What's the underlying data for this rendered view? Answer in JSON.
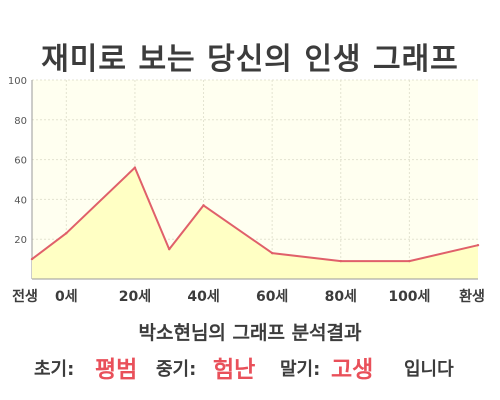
{
  "title": "재미로 보는 당신의 인생 그래프",
  "chart_data": {
    "type": "area",
    "x": [
      -10,
      0,
      20,
      30,
      40,
      60,
      80,
      100,
      120
    ],
    "values": [
      10,
      23,
      56,
      15,
      37,
      13,
      9,
      9,
      17
    ],
    "xlim": [
      -10,
      120
    ],
    "ylim": [
      0,
      100
    ],
    "yticks": [
      20,
      40,
      60,
      80,
      100
    ],
    "xticks": [
      {
        "value": -10,
        "label": "전생"
      },
      {
        "value": 0,
        "label": "0세"
      },
      {
        "value": 20,
        "label": "20세"
      },
      {
        "value": 40,
        "label": "40세"
      },
      {
        "value": 60,
        "label": "60세"
      },
      {
        "value": 80,
        "label": "80세"
      },
      {
        "value": 100,
        "label": "100세"
      },
      {
        "value": 120,
        "label": "환생"
      }
    ],
    "grid": true,
    "line_color": "#e0606a",
    "fill_color": "#ffffc4",
    "plot_bg": "#fffff0"
  },
  "result": {
    "title": "박소현님의 그래프 분석결과",
    "early_label": "초기:",
    "early_value": "평범",
    "middle_label": "중기:",
    "middle_value": "험난",
    "late_label": "말기:",
    "late_value": "고생",
    "suffix": "입니다"
  }
}
